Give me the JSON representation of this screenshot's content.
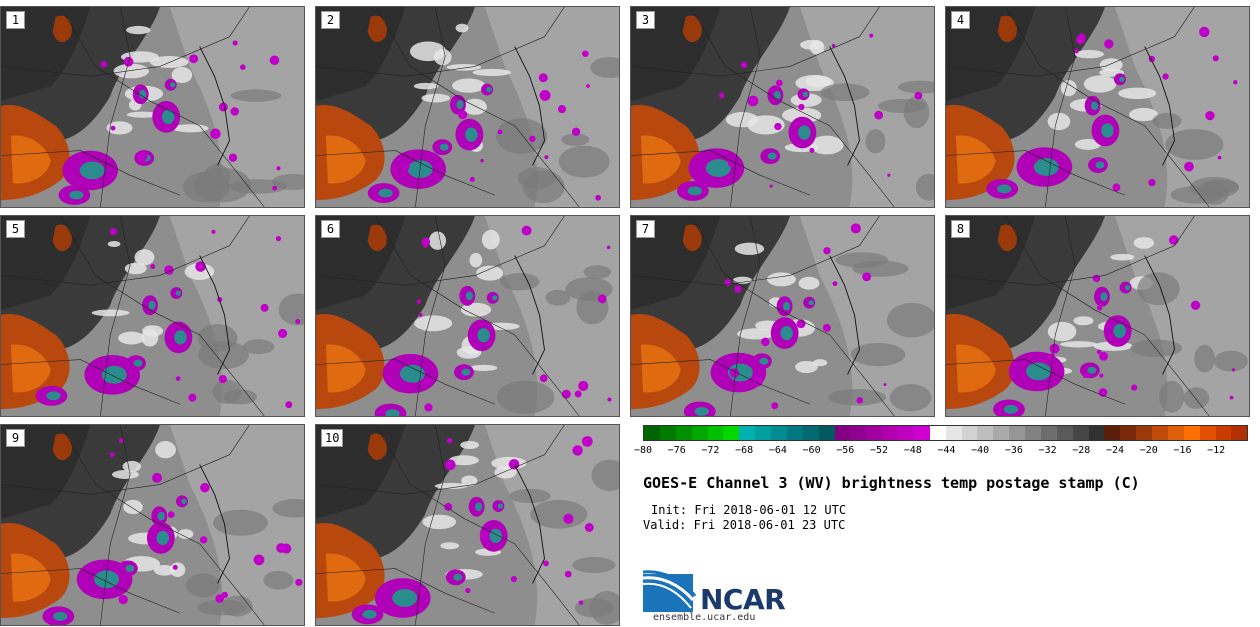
{
  "title": "GOES-E Channel 3 (WV) brightness temp postage stamp (C)",
  "init_line": "Init: Fri 2018-06-01 12 UTC",
  "valid_line": "Valid: Fri 2018-06-01 23 UTC",
  "logo_text": "NCAR",
  "logo_url": "ensemble.ucar.edu",
  "panels": [
    "1",
    "2",
    "3",
    "4",
    "5",
    "6",
    "7",
    "8",
    "9",
    "10"
  ],
  "colorbar": {
    "colors": [
      "#006400",
      "#007a00",
      "#009000",
      "#00a800",
      "#00c000",
      "#00d800",
      "#00b0b0",
      "#009fa0",
      "#008c90",
      "#007a80",
      "#006a70",
      "#005a60",
      "#800080",
      "#900090",
      "#a000a0",
      "#b000b0",
      "#c000c0",
      "#d000d0",
      "#ffffff",
      "#e6e6e6",
      "#d2d2d2",
      "#bebebe",
      "#aaaaaa",
      "#969696",
      "#828282",
      "#6e6e6e",
      "#5a5a5a",
      "#464646",
      "#323232",
      "#5a1e0a",
      "#7a2a0a",
      "#9a3a0a",
      "#c04a0a",
      "#e0600a",
      "#ff7000",
      "#e05000",
      "#c83c00",
      "#b03000"
    ],
    "tick_labels": [
      "-80",
      "-76",
      "-72",
      "-68",
      "-64",
      "-60",
      "-56",
      "-52",
      "-48",
      "-44",
      "-40",
      "-36",
      "-32",
      "-28",
      "-24",
      "-20",
      "-16",
      "-12"
    ]
  }
}
